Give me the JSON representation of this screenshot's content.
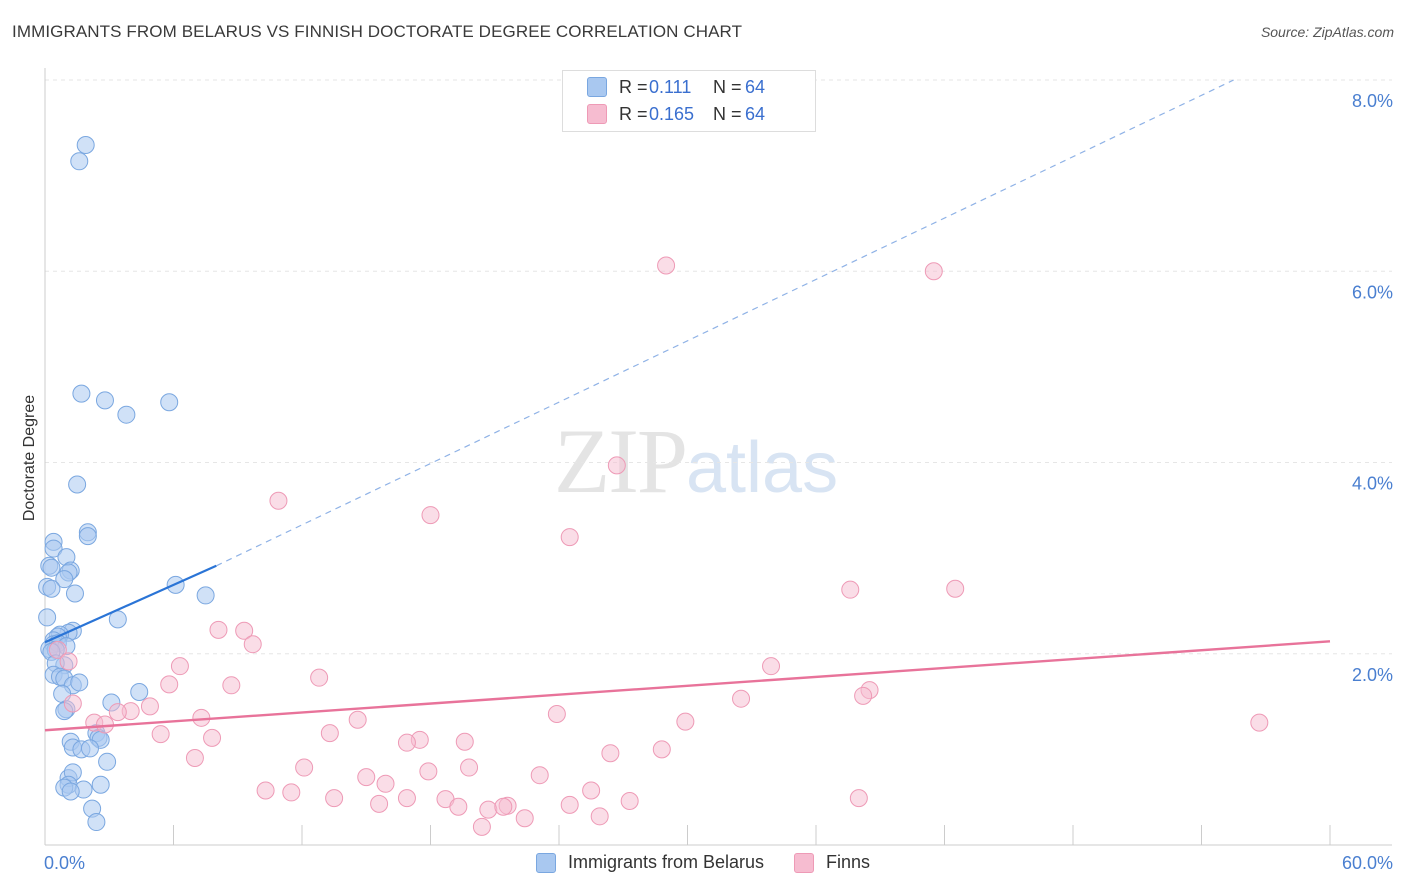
{
  "title": "IMMIGRANTS FROM BELARUS VS FINNISH DOCTORATE DEGREE CORRELATION CHART",
  "source": "Source: ZipAtlas.com",
  "watermark": {
    "part1": "ZIP",
    "part2": "atlas"
  },
  "legend": {
    "rows": [
      {
        "r_label": "R =",
        "r_value": "0.111",
        "n_label": "N =",
        "n_value": "64"
      },
      {
        "r_label": "R =",
        "r_value": "0.165",
        "n_label": "N =",
        "n_value": "64"
      }
    ]
  },
  "bottom_legend": {
    "series1": "Immigrants from Belarus",
    "series2": "Finns"
  },
  "colors": {
    "blue_fill": "#a9c8f0",
    "blue_stroke": "#7aa7e0",
    "blue_line": "#2a74d6",
    "pink_fill": "#f6bcd0",
    "pink_stroke": "#ee9ab6",
    "pink_line": "#e8739a",
    "axis_text": "#4a7fd0",
    "grid": "#e6e6e6"
  },
  "chart_data": {
    "type": "scatter",
    "title": "IMMIGRANTS FROM BELARUS VS FINNISH DOCTORATE DEGREE CORRELATION CHART",
    "xlabel": "",
    "ylabel": "Doctorate Degree",
    "xlim": [
      0,
      60
    ],
    "ylim": [
      0,
      8.0
    ],
    "x_tick_labels": [
      "0.0%",
      "60.0%"
    ],
    "y_tick_values": [
      2.0,
      4.0,
      6.0,
      8.0
    ],
    "y_tick_labels": [
      "2.0%",
      "4.0%",
      "6.0%",
      "8.0%"
    ],
    "series": [
      {
        "name": "Immigrants from Belarus",
        "points": [
          [
            1.9,
            7.32
          ],
          [
            1.6,
            7.15
          ],
          [
            1.7,
            4.72
          ],
          [
            2.8,
            4.65
          ],
          [
            3.8,
            4.5
          ],
          [
            5.8,
            4.63
          ],
          [
            1.5,
            3.77
          ],
          [
            2.0,
            3.27
          ],
          [
            2.0,
            3.23
          ],
          [
            0.4,
            3.17
          ],
          [
            0.4,
            3.1
          ],
          [
            1.0,
            3.01
          ],
          [
            0.2,
            2.92
          ],
          [
            0.3,
            2.9
          ],
          [
            1.2,
            2.87
          ],
          [
            1.1,
            2.85
          ],
          [
            0.9,
            2.78
          ],
          [
            0.1,
            2.7
          ],
          [
            0.3,
            2.68
          ],
          [
            6.1,
            2.72
          ],
          [
            7.5,
            2.61
          ],
          [
            1.4,
            2.63
          ],
          [
            0.1,
            2.38
          ],
          [
            3.4,
            2.36
          ],
          [
            1.3,
            2.24
          ],
          [
            1.1,
            2.22
          ],
          [
            0.7,
            2.2
          ],
          [
            0.6,
            2.18
          ],
          [
            0.4,
            2.14
          ],
          [
            0.4,
            2.1
          ],
          [
            0.6,
            2.11
          ],
          [
            1.0,
            2.08
          ],
          [
            0.2,
            2.05
          ],
          [
            0.5,
            2.04
          ],
          [
            0.3,
            2.02
          ],
          [
            0.9,
            1.88
          ],
          [
            0.5,
            1.9
          ],
          [
            0.4,
            1.78
          ],
          [
            0.7,
            1.76
          ],
          [
            0.9,
            1.74
          ],
          [
            1.3,
            1.67
          ],
          [
            1.6,
            1.7
          ],
          [
            0.8,
            1.58
          ],
          [
            4.4,
            1.6
          ],
          [
            3.1,
            1.49
          ],
          [
            1.0,
            1.42
          ],
          [
            0.9,
            1.4
          ],
          [
            2.4,
            1.17
          ],
          [
            2.5,
            1.12
          ],
          [
            1.2,
            1.08
          ],
          [
            2.6,
            1.1
          ],
          [
            1.3,
            1.02
          ],
          [
            1.7,
            1.0
          ],
          [
            2.1,
            1.01
          ],
          [
            2.9,
            0.87
          ],
          [
            1.1,
            0.7
          ],
          [
            1.3,
            0.76
          ],
          [
            2.6,
            0.63
          ],
          [
            1.1,
            0.63
          ],
          [
            0.9,
            0.6
          ],
          [
            1.8,
            0.58
          ],
          [
            1.2,
            0.56
          ],
          [
            2.2,
            0.38
          ],
          [
            2.4,
            0.24
          ]
        ]
      },
      {
        "name": "Finns",
        "points": [
          [
            29.0,
            6.06
          ],
          [
            41.5,
            6.0
          ],
          [
            26.7,
            3.97
          ],
          [
            10.9,
            3.6
          ],
          [
            18.0,
            3.45
          ],
          [
            24.5,
            3.22
          ],
          [
            37.6,
            2.67
          ],
          [
            42.5,
            2.68
          ],
          [
            8.1,
            2.25
          ],
          [
            9.3,
            2.24
          ],
          [
            9.7,
            2.1
          ],
          [
            0.6,
            2.04
          ],
          [
            1.1,
            1.92
          ],
          [
            6.3,
            1.87
          ],
          [
            33.9,
            1.87
          ],
          [
            12.8,
            1.75
          ],
          [
            5.8,
            1.68
          ],
          [
            8.7,
            1.67
          ],
          [
            38.5,
            1.62
          ],
          [
            38.2,
            1.56
          ],
          [
            32.5,
            1.53
          ],
          [
            1.3,
            1.48
          ],
          [
            4.9,
            1.45
          ],
          [
            4.0,
            1.4
          ],
          [
            3.4,
            1.39
          ],
          [
            23.9,
            1.37
          ],
          [
            7.3,
            1.33
          ],
          [
            14.6,
            1.31
          ],
          [
            2.3,
            1.28
          ],
          [
            2.8,
            1.26
          ],
          [
            29.9,
            1.29
          ],
          [
            56.7,
            1.28
          ],
          [
            5.4,
            1.16
          ],
          [
            13.3,
            1.17
          ],
          [
            7.8,
            1.12
          ],
          [
            17.5,
            1.1
          ],
          [
            16.9,
            1.07
          ],
          [
            19.6,
            1.08
          ],
          [
            28.8,
            1.0
          ],
          [
            26.4,
            0.96
          ],
          [
            7.0,
            0.91
          ],
          [
            12.1,
            0.81
          ],
          [
            19.8,
            0.81
          ],
          [
            17.9,
            0.77
          ],
          [
            15.0,
            0.71
          ],
          [
            23.1,
            0.73
          ],
          [
            15.9,
            0.64
          ],
          [
            25.5,
            0.57
          ],
          [
            10.3,
            0.57
          ],
          [
            11.5,
            0.55
          ],
          [
            13.5,
            0.49
          ],
          [
            16.9,
            0.49
          ],
          [
            18.7,
            0.48
          ],
          [
            21.6,
            0.41
          ],
          [
            24.5,
            0.42
          ],
          [
            27.3,
            0.46
          ],
          [
            15.6,
            0.43
          ],
          [
            20.7,
            0.37
          ],
          [
            21.4,
            0.4
          ],
          [
            38.0,
            0.49
          ],
          [
            22.4,
            0.28
          ],
          [
            25.9,
            0.3
          ],
          [
            20.4,
            0.19
          ],
          [
            19.3,
            0.4
          ]
        ]
      }
    ],
    "trendlines": [
      {
        "series": "Immigrants from Belarus",
        "solid": [
          [
            0,
            2.12
          ],
          [
            8.0,
            2.92
          ]
        ],
        "dashed": [
          [
            8.0,
            2.92
          ],
          [
            55.5,
            8.0
          ]
        ]
      },
      {
        "series": "Finns",
        "solid": [
          [
            0,
            1.2
          ],
          [
            60,
            2.13
          ]
        ]
      }
    ]
  }
}
